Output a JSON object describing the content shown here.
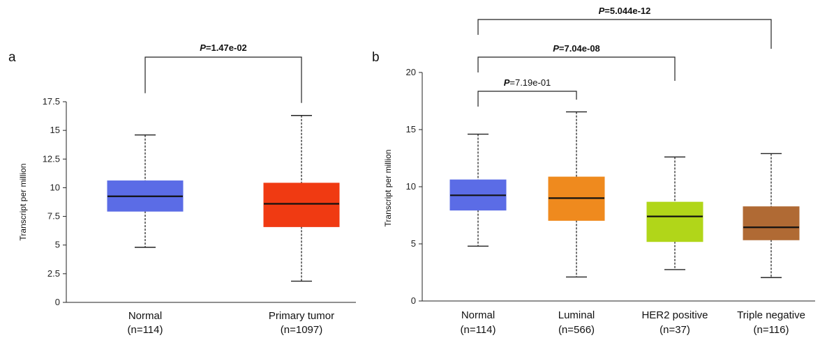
{
  "chart_data": [
    {
      "type": "box",
      "panel_label": "a",
      "ylabel": "Transcript per million",
      "ylim": [
        0,
        17.5
      ],
      "yticks": [
        "0",
        "2.5",
        "5",
        "7.5",
        "10",
        "12.5",
        "15",
        "17.5"
      ],
      "ytick_values": [
        0,
        2.5,
        5,
        7.5,
        10,
        12.5,
        15,
        17.5
      ],
      "grid": false,
      "groups": [
        {
          "name": "Normal",
          "n_label": "(n=114)",
          "min": 4.8,
          "q1": 7.95,
          "median": 9.25,
          "q3": 10.6,
          "max": 14.6,
          "color": "#5b6ce6"
        },
        {
          "name": "Primary tumor",
          "n_label": "(n=1097)",
          "min": 1.85,
          "q1": 6.6,
          "median": 8.6,
          "q3": 10.4,
          "max": 16.3,
          "color": "#f03a12"
        }
      ],
      "comparisons": [
        {
          "from": 0,
          "to": 1,
          "p_prefix": "P",
          "p_value": "=1.47e-02",
          "bold": true
        }
      ]
    },
    {
      "type": "box",
      "panel_label": "b",
      "ylabel": "Transcript per million",
      "ylim": [
        0,
        20
      ],
      "yticks": [
        "0",
        "5",
        "10",
        "15",
        "20"
      ],
      "ytick_values": [
        0,
        5,
        10,
        15,
        20
      ],
      "grid": false,
      "groups": [
        {
          "name": "Normal",
          "n_label": "(n=114)",
          "min": 4.8,
          "q1": 7.95,
          "median": 9.25,
          "q3": 10.6,
          "max": 14.6,
          "color": "#5b6ce6"
        },
        {
          "name": "Luminal",
          "n_label": "(n=566)",
          "min": 2.1,
          "q1": 7.05,
          "median": 9.0,
          "q3": 10.85,
          "max": 16.55,
          "color": "#ef8a1e"
        },
        {
          "name": "HER2 positive",
          "n_label": "(n=37)",
          "min": 2.75,
          "q1": 5.2,
          "median": 7.4,
          "q3": 8.65,
          "max": 12.6,
          "color": "#b1d619"
        },
        {
          "name": "Triple negative",
          "n_label": "(n=116)",
          "min": 2.05,
          "q1": 5.35,
          "median": 6.45,
          "q3": 8.25,
          "max": 12.9,
          "color": "#b06a34"
        }
      ],
      "comparisons": [
        {
          "from": 0,
          "to": 1,
          "p_prefix": "P",
          "p_value": "=7.19e-01",
          "bold": false
        },
        {
          "from": 0,
          "to": 2,
          "p_prefix": "P",
          "p_value": "=7.04e-08",
          "bold": true
        },
        {
          "from": 0,
          "to": 3,
          "p_prefix": "P",
          "p_value": "=5.044e-12",
          "bold": true
        }
      ]
    }
  ]
}
